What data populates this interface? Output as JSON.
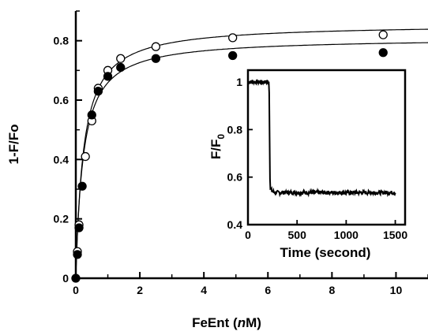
{
  "chart_data": [
    {
      "type": "scatter",
      "xlabel": "FeEnt (",
      "xlabel_italic": "n",
      "xlabel_end": "M)",
      "ylabel": "1-F/Fo",
      "xlim": [
        0,
        11
      ],
      "ylim": [
        0,
        0.9
      ],
      "xticks": [
        0,
        2,
        4,
        6,
        8,
        10
      ],
      "yticks": [
        0,
        0.2,
        0.4,
        0.6,
        0.8
      ],
      "xtick_labels": [
        "0",
        "2",
        "4",
        "6",
        "8",
        "10"
      ],
      "ytick_labels": [
        "0",
        "0.2",
        "0.4",
        "0.6",
        "0.8"
      ],
      "grid": false,
      "series": [
        {
          "marker": "open-circle",
          "x": [
            0.05,
            0.1,
            0.3,
            0.5,
            0.7,
            1.0,
            1.4,
            2.5,
            4.9,
            9.6
          ],
          "y": [
            0.09,
            0.18,
            0.41,
            0.53,
            0.64,
            0.7,
            0.74,
            0.78,
            0.81,
            0.82
          ],
          "fit": {
            "model": "hyperbolic",
            "bmax": 0.857,
            "kd": 0.24
          }
        },
        {
          "marker": "filled-circle",
          "x": [
            0.0,
            0.05,
            0.1,
            0.2,
            0.5,
            0.7,
            1.0,
            1.4,
            2.5,
            4.9,
            9.6
          ],
          "y": [
            0.0,
            0.08,
            0.17,
            0.31,
            0.55,
            0.63,
            0.68,
            0.71,
            0.74,
            0.75,
            0.76
          ],
          "fit": {
            "model": "hyperbolic",
            "bmax": 0.81,
            "kd": 0.23
          }
        }
      ]
    },
    {
      "type": "line",
      "role": "inset",
      "xlabel": "Time (second)",
      "ylabel": "F/F",
      "ylabel_sub": "0",
      "xlim": [
        0,
        1600
      ],
      "ylim": [
        0.4,
        1.05
      ],
      "xticks": [
        0,
        500,
        1000,
        1500
      ],
      "yticks": [
        0.4,
        0.6,
        0.8,
        1
      ],
      "xtick_labels": [
        "0",
        "500",
        "1000",
        "1500"
      ],
      "ytick_labels": [
        "0.4",
        "0.6",
        "0.8",
        "1"
      ],
      "grid": false,
      "trace": {
        "baseline_start": 0,
        "drop_time": 215,
        "level_before": 1.0,
        "level_after": 0.535,
        "end_time": 1500,
        "noise": 0.008
      }
    }
  ]
}
